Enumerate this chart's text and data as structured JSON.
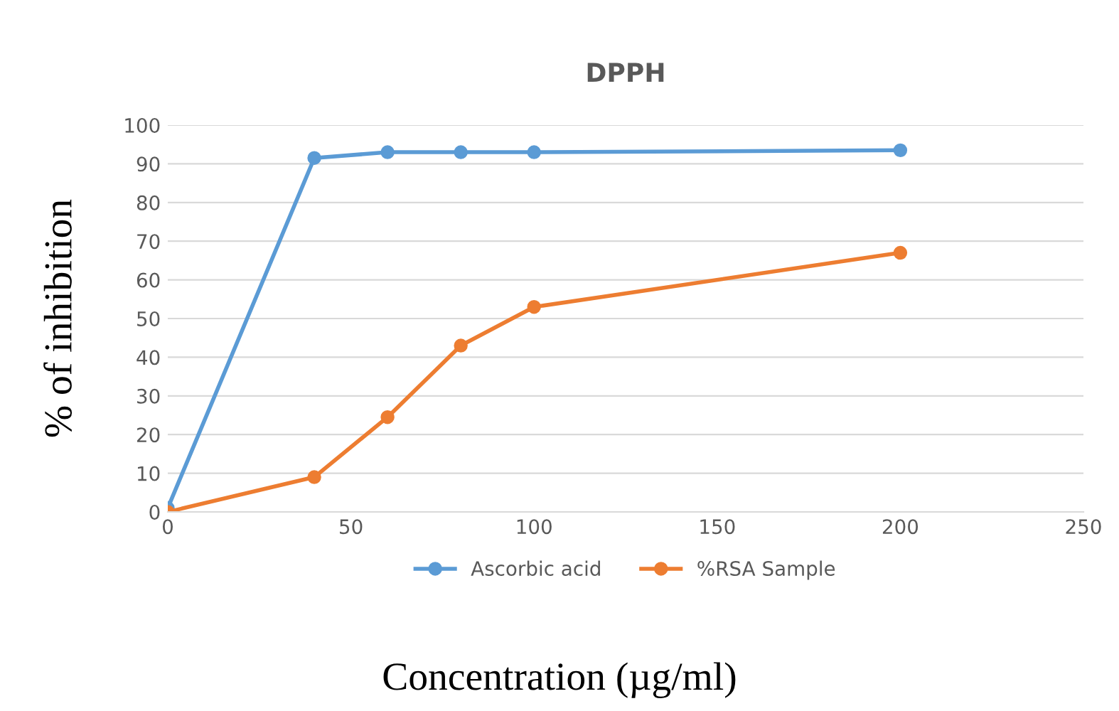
{
  "chart_data": {
    "type": "line",
    "title": "DPPH",
    "xlabel": "Concentration (µg/ml)",
    "ylabel": "% of inhibition",
    "xlim": [
      0,
      250
    ],
    "xticks": [
      0,
      50,
      100,
      150,
      200,
      250
    ],
    "ylim": [
      0,
      100
    ],
    "yticks": [
      0,
      10,
      20,
      30,
      40,
      50,
      60,
      70,
      80,
      90,
      100
    ],
    "grid": "y",
    "legend": "bottom",
    "marker": "circle",
    "line_style": "solid",
    "series": [
      {
        "name": "Ascorbic acid",
        "color": "#5b9bd5",
        "x": [
          0,
          40,
          60,
          80,
          100,
          200
        ],
        "values": [
          1,
          91.5,
          93,
          93,
          93,
          93.5
        ]
      },
      {
        "name": "%RSA Sample",
        "color": "#ed7d31",
        "x": [
          0,
          40,
          60,
          80,
          100,
          200
        ],
        "values": [
          0,
          9,
          24.5,
          43,
          53,
          67
        ]
      }
    ]
  }
}
